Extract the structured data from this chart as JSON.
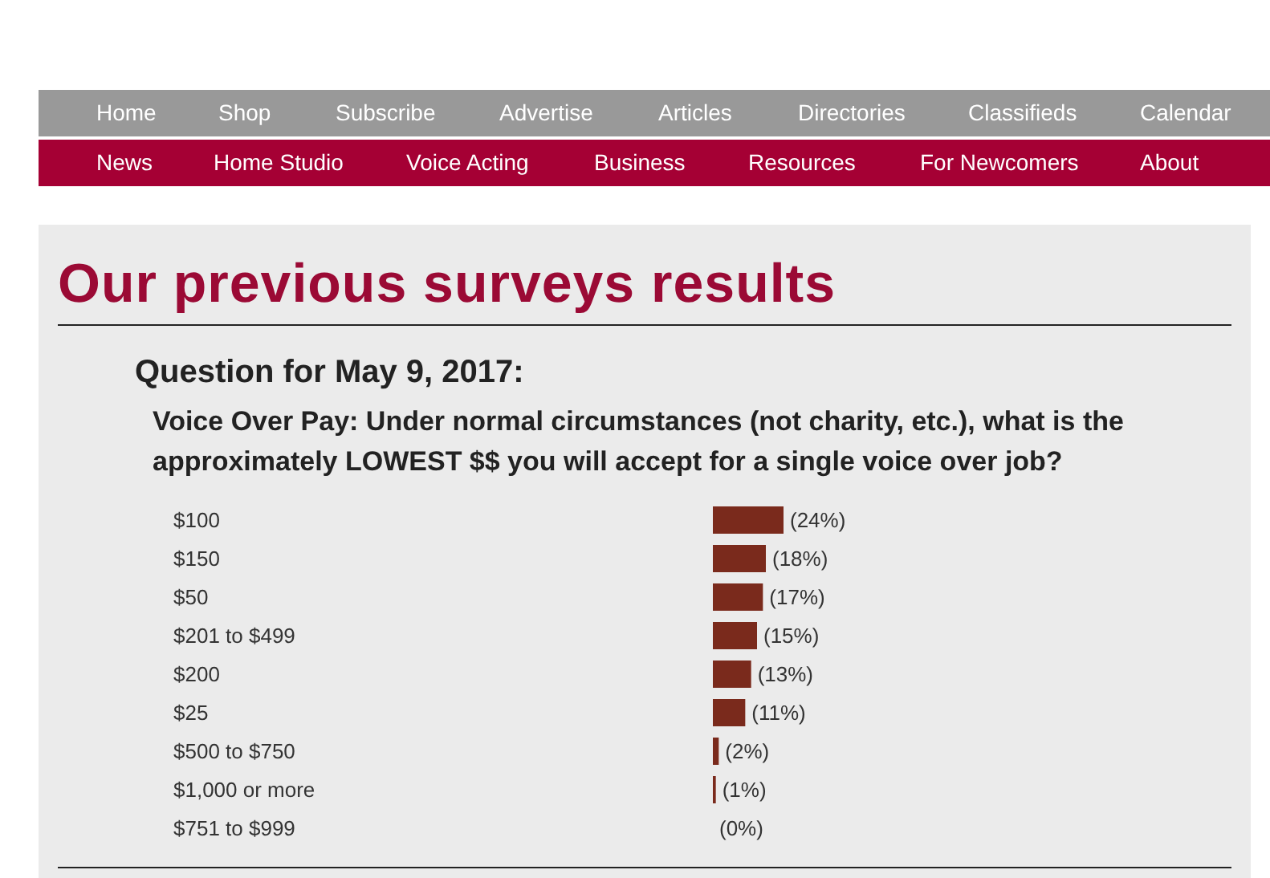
{
  "chart_data": {
    "type": "bar",
    "orientation": "horizontal",
    "title": "Our previous surveys results",
    "subtitle": "Question for May 9, 2017:",
    "annotations": [
      "Voice Over Pay: Under normal circumstances (not charity, etc.), what is the approximately LOWEST $$ you will accept for a single voice over job?",
      "Home",
      "Shop",
      "Subscribe",
      "Advertise",
      "Articles",
      "Directories",
      "Classifieds",
      "Calendar",
      "News",
      "Home Studio",
      "Voice Acting",
      "Business",
      "Resources",
      "For Newcomers",
      "About"
    ],
    "categories": [
      "$100",
      "$150",
      "$50",
      "$201 to $499",
      "$200",
      "$25",
      "$500 to $750",
      "$1,000 or more",
      "$751 to $999"
    ],
    "values": [
      24,
      18,
      17,
      15,
      13,
      11,
      2,
      1,
      0
    ],
    "value_labels": [
      "(24%)",
      "(18%)",
      "(17%)",
      "(15%)",
      "(13%)",
      "(11%)",
      "(2%)",
      "(1%)",
      "(0%)"
    ],
    "color": "#7a2a1c",
    "tick_labels": "y"
  }
}
